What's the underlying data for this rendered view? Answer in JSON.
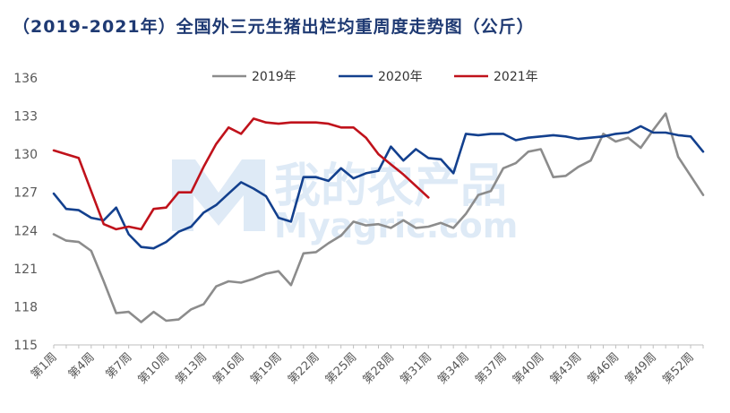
{
  "title": "（2019-2021年）全国外三元生猪出栏均重周度走势图（公斤）",
  "watermark": {
    "cn": "我的农产品",
    "en": "Myagric.com"
  },
  "chart_data": {
    "type": "line",
    "title": "（2019-2021年）全国外三元生猪出栏均重周度走势图（公斤）",
    "ylim": [
      115,
      136
    ],
    "yticks": [
      115,
      118,
      121,
      124,
      127,
      130,
      133,
      136
    ],
    "xlim": [
      1,
      53
    ],
    "xtick_positions": [
      1,
      4,
      7,
      10,
      13,
      16,
      19,
      22,
      25,
      28,
      31,
      34,
      37,
      40,
      43,
      46,
      49,
      52
    ],
    "xtick_labels": [
      "第1周",
      "第4周",
      "第7周",
      "第10周",
      "第13周",
      "第16周",
      "第19周",
      "第22周",
      "第25周",
      "第28周",
      "第31周",
      "第34周",
      "第37周",
      "第40周",
      "第43周",
      "第46周",
      "第49周",
      "第52周"
    ],
    "grid": false,
    "legend_position": "top",
    "series": [
      {
        "name": "2019年",
        "color": "#8c8c8c",
        "x": [
          1,
          2,
          3,
          4,
          5,
          6,
          7,
          8,
          9,
          10,
          11,
          12,
          13,
          14,
          15,
          16,
          17,
          18,
          19,
          20,
          21,
          22,
          23,
          24,
          25,
          26,
          27,
          28,
          29,
          30,
          31,
          32,
          33,
          34,
          35,
          36,
          37,
          38,
          39,
          40,
          41,
          42,
          43,
          44,
          45,
          46,
          47,
          48,
          49,
          50,
          51,
          52,
          53
        ],
        "values": [
          123.7,
          123.2,
          123.1,
          122.4,
          120.0,
          117.5,
          117.6,
          116.8,
          117.6,
          116.9,
          117.0,
          117.8,
          118.2,
          119.6,
          120.0,
          119.9,
          120.2,
          120.6,
          120.8,
          119.7,
          122.2,
          122.3,
          123.0,
          123.6,
          124.7,
          124.4,
          124.5,
          124.2,
          124.8,
          124.2,
          124.3,
          124.6,
          124.2,
          125.3,
          126.8,
          127.1,
          128.9,
          129.3,
          130.2,
          130.4,
          128.2,
          128.3,
          129.0,
          129.5,
          131.6,
          131.0,
          131.3,
          130.5,
          131.9,
          133.2,
          129.8,
          128.3,
          126.8
        ]
      },
      {
        "name": "2020年",
        "color": "#13408e",
        "x": [
          1,
          2,
          3,
          4,
          5,
          6,
          7,
          8,
          9,
          10,
          11,
          12,
          13,
          14,
          15,
          16,
          17,
          18,
          19,
          20,
          21,
          22,
          23,
          24,
          25,
          26,
          27,
          28,
          29,
          30,
          31,
          32,
          33,
          34,
          35,
          36,
          37,
          38,
          39,
          40,
          41,
          42,
          43,
          44,
          45,
          46,
          47,
          48,
          49,
          50,
          51,
          52,
          53
        ],
        "values": [
          126.9,
          125.7,
          125.6,
          125.0,
          124.8,
          125.8,
          123.7,
          122.7,
          122.6,
          123.1,
          123.9,
          124.3,
          125.4,
          126.0,
          126.9,
          127.8,
          127.3,
          126.7,
          125.0,
          124.7,
          128.2,
          128.2,
          127.9,
          128.9,
          128.1,
          128.5,
          128.7,
          130.6,
          129.5,
          130.4,
          129.7,
          129.6,
          128.5,
          131.6,
          131.5,
          131.6,
          131.6,
          131.1,
          131.3,
          131.4,
          131.5,
          131.4,
          131.2,
          131.3,
          131.4,
          131.6,
          131.7,
          132.2,
          131.7,
          131.7,
          131.5,
          131.4,
          130.2
        ]
      },
      {
        "name": "2021年",
        "color": "#c0121b",
        "x": [
          1,
          2,
          3,
          4,
          5,
          6,
          7,
          8,
          9,
          10,
          11,
          12,
          13,
          14,
          15,
          16,
          17,
          18,
          19,
          20,
          21,
          22,
          23,
          24,
          25,
          26,
          27,
          28,
          29,
          30,
          31
        ],
        "values": [
          130.3,
          130.0,
          129.7,
          127.1,
          124.5,
          124.1,
          124.3,
          124.1,
          125.7,
          125.8,
          127.0,
          127.0,
          129.0,
          130.8,
          132.1,
          131.6,
          132.8,
          132.5,
          132.4,
          132.5,
          132.5,
          132.5,
          132.4,
          132.1,
          132.1,
          131.3,
          130.0,
          129.2,
          128.4,
          127.5,
          126.6
        ]
      }
    ]
  }
}
